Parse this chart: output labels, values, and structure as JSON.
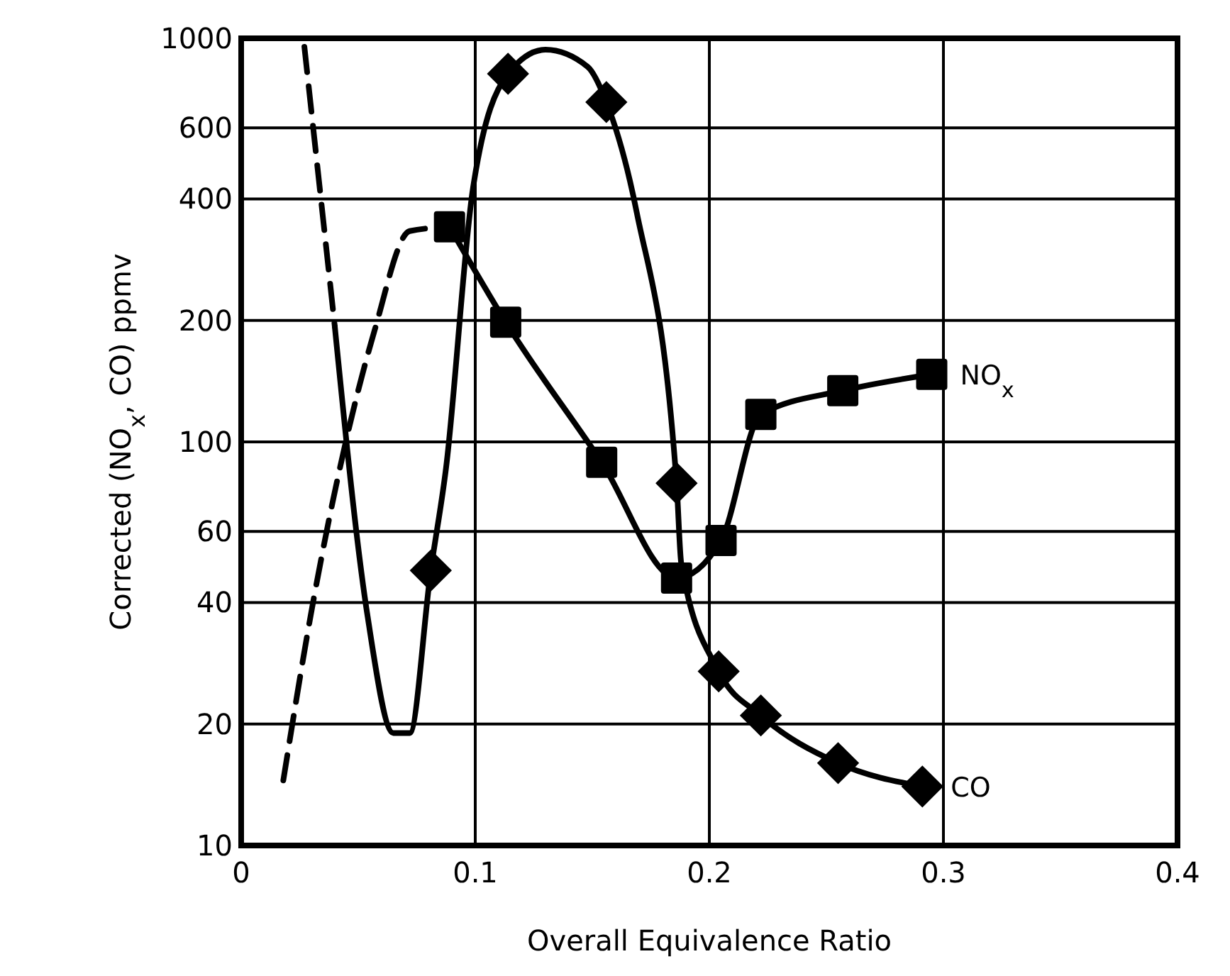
{
  "chart_data": {
    "type": "line",
    "xlabel": "Overall Equivalence Ratio",
    "ylabel": "Corrected (NO$_{x}$, CO) ppmv",
    "xlim": [
      0,
      0.4
    ],
    "xticks": [
      0,
      0.1,
      0.2,
      0.3,
      0.4
    ],
    "ylim": [
      10,
      1000
    ],
    "yticks": [
      10,
      20,
      40,
      60,
      100,
      200,
      400,
      600,
      1000
    ],
    "log": "y",
    "grid": true,
    "series": [
      {
        "color": "#000000",
        "line_style": "dashed",
        "marker": "none",
        "x": [
          0.018,
          0.03,
          0.057,
          0.072,
          0.089
        ],
        "values": [
          14.5,
          38,
          189,
          333,
          341
        ]
      },
      {
        "name": "NO$_{x}$",
        "color": "#000000",
        "line_style": "solid",
        "marker": "square",
        "x": [
          0.089,
          0.113,
          0.154,
          0.186,
          0.205,
          0.222,
          0.257,
          0.295
        ],
        "values": [
          341,
          198,
          89,
          46,
          57,
          117,
          134,
          147
        ]
      },
      {
        "color": "#000000",
        "line_style": "dashed",
        "marker": "none",
        "x": [
          0.027,
          0.04
        ],
        "values": [
          953,
          193
        ]
      },
      {
        "color": "#000000",
        "line_style": "solid",
        "marker": "none",
        "x": [
          0.04,
          0.054,
          0.065,
          0.072,
          0.081,
          0.0875,
          0.099,
          0.114,
          0.13,
          0.148,
          0.156,
          0.169,
          0.186,
          0.188,
          0.204,
          0.222,
          0.255,
          0.291
        ],
        "values": [
          193,
          37,
          19,
          19,
          48,
          86,
          424,
          817,
          937,
          850,
          695,
          370,
          79,
          50,
          27,
          21,
          16,
          14
        ]
      },
      {
        "name": "CO",
        "type": "scatter",
        "color": "#000000",
        "marker": "diamond",
        "x": [
          0.081,
          0.114,
          0.156,
          0.186,
          0.204,
          0.222,
          0.255,
          0.291
        ],
        "values": [
          48,
          817,
          695,
          79,
          27,
          21,
          16,
          14
        ]
      }
    ]
  }
}
